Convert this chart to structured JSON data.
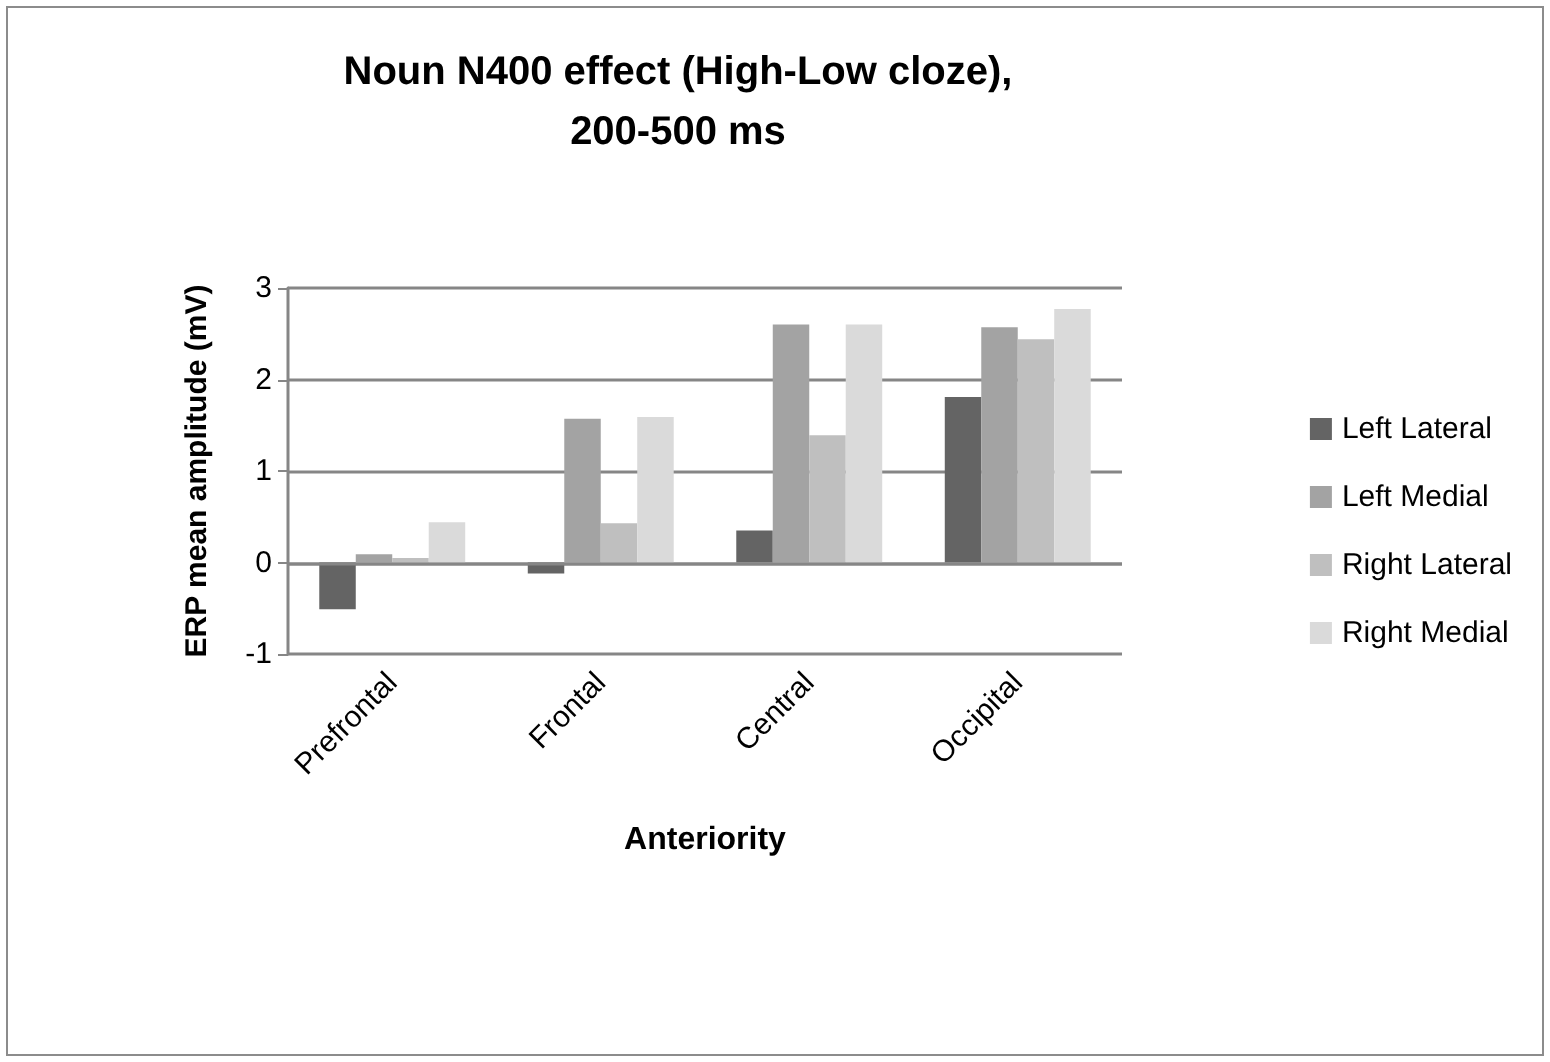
{
  "chart_data": {
    "type": "bar",
    "title": "Noun N400 effect (High-Low cloze),\n200-500 ms",
    "xlabel": "Anteriority",
    "ylabel": "ERP mean amplitude (mV)",
    "categories": [
      "Prefrontal",
      "Frontal",
      "Central",
      "Occipital"
    ],
    "series": [
      {
        "name": "Left Lateral",
        "color": "#646464",
        "values": [
          -0.51,
          -0.12,
          0.35,
          1.81
        ]
      },
      {
        "name": "Left Medial",
        "color": "#a3a3a3",
        "values": [
          0.09,
          1.57,
          2.6,
          2.57
        ]
      },
      {
        "name": "Right Lateral",
        "color": "#bfbfbf",
        "values": [
          0.05,
          0.43,
          1.39,
          2.44
        ]
      },
      {
        "name": "Right Medial",
        "color": "#dadada",
        "values": [
          0.44,
          1.59,
          2.6,
          2.77
        ]
      }
    ],
    "ylim": [
      -1,
      3
    ],
    "yticks": [
      -1,
      0,
      1,
      2,
      3
    ],
    "grid": "y",
    "legend": "right"
  }
}
